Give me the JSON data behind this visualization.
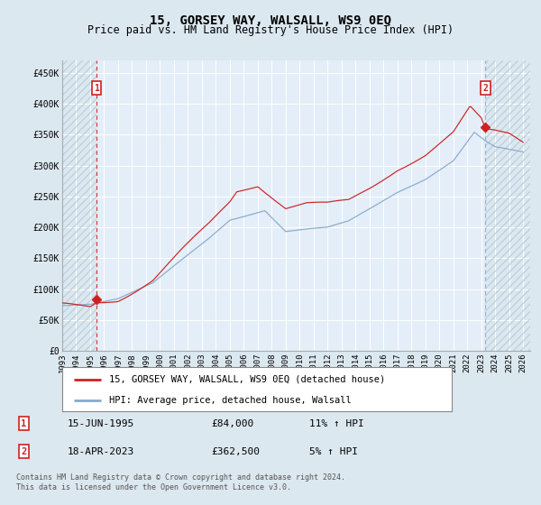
{
  "title": "15, GORSEY WAY, WALSALL, WS9 0EQ",
  "subtitle": "Price paid vs. HM Land Registry's House Price Index (HPI)",
  "footer": "Contains HM Land Registry data © Crown copyright and database right 2024.\nThis data is licensed under the Open Government Licence v3.0.",
  "legend_line1": "15, GORSEY WAY, WALSALL, WS9 0EQ (detached house)",
  "legend_line2": "HPI: Average price, detached house, Walsall",
  "sale1_label": "1",
  "sale1_date": "15-JUN-1995",
  "sale1_price": "£84,000",
  "sale1_hpi": "11% ↑ HPI",
  "sale2_label": "2",
  "sale2_date": "18-APR-2023",
  "sale2_price": "£362,500",
  "sale2_hpi": "5% ↑ HPI",
  "bg_color": "#dce8f0",
  "plot_bg": "#e4eef8",
  "red_line_color": "#cc2222",
  "blue_line_color": "#88aacc",
  "grid_color": "#ffffff",
  "sale1_x": 1995.46,
  "sale1_y": 84000,
  "sale2_x": 2023.3,
  "sale2_y": 362500,
  "ylim_min": 0,
  "ylim_max": 470000,
  "xlim_min": 1993.0,
  "xlim_max": 2026.5,
  "yticks": [
    0,
    50000,
    100000,
    150000,
    200000,
    250000,
    300000,
    350000,
    400000,
    450000
  ],
  "ytick_labels": [
    "£0",
    "£50K",
    "£100K",
    "£150K",
    "£200K",
    "£250K",
    "£300K",
    "£350K",
    "£400K",
    "£450K"
  ],
  "xtick_years": [
    1993,
    1994,
    1995,
    1996,
    1997,
    1998,
    1999,
    2000,
    2001,
    2002,
    2003,
    2004,
    2005,
    2006,
    2007,
    2008,
    2009,
    2010,
    2011,
    2012,
    2013,
    2014,
    2015,
    2016,
    2017,
    2018,
    2019,
    2020,
    2021,
    2022,
    2023,
    2024,
    2025,
    2026
  ]
}
